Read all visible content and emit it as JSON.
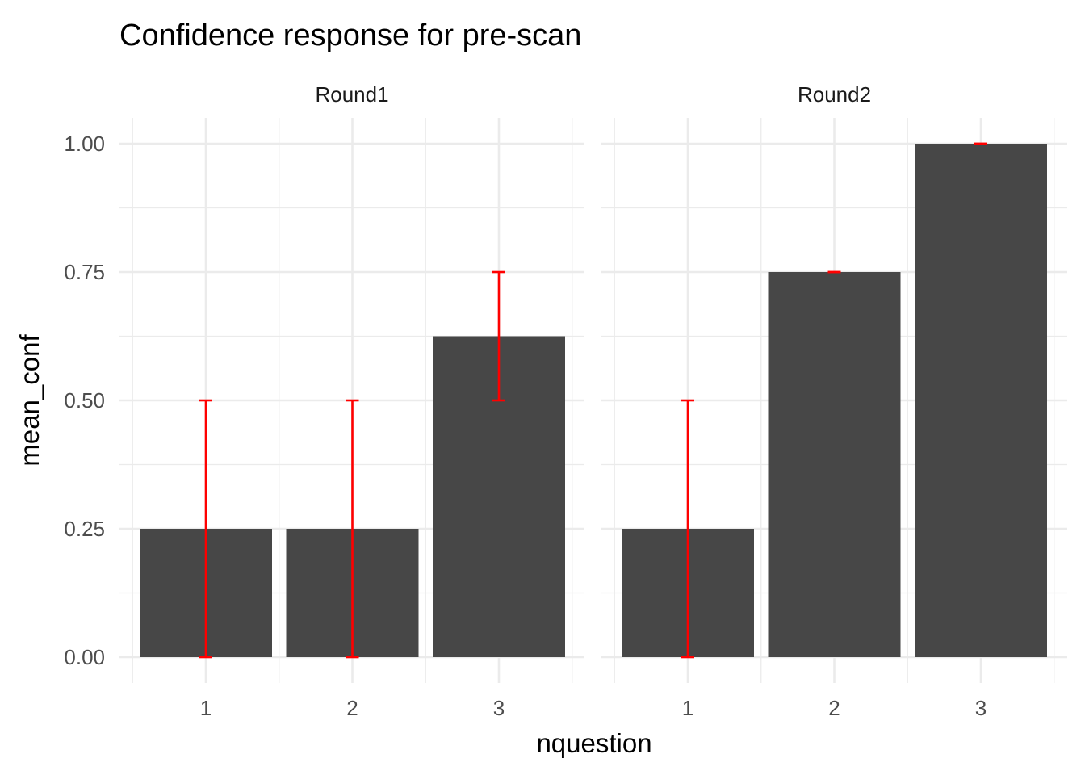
{
  "chart_data": {
    "type": "bar",
    "title": "Confidence response for pre-scan",
    "xlabel": "nquestion",
    "ylabel": "mean_conf",
    "ylim": [
      0,
      1
    ],
    "y_ticks": [
      "0.00",
      "0.25",
      "0.50",
      "0.75",
      "1.00"
    ],
    "grid": true,
    "legend": "none",
    "colors": {
      "bar": "#474747",
      "errorbar": "#ff0000"
    },
    "facets": [
      {
        "label": "Round1",
        "categories": [
          "1",
          "2",
          "3"
        ],
        "values": [
          0.25,
          0.25,
          0.625
        ],
        "error_low": [
          0.0,
          0.0,
          0.5
        ],
        "error_high": [
          0.5,
          0.5,
          0.75
        ]
      },
      {
        "label": "Round2",
        "categories": [
          "1",
          "2",
          "3"
        ],
        "values": [
          0.25,
          0.75,
          1.0
        ],
        "error_low": [
          0.0,
          0.75,
          1.0
        ],
        "error_high": [
          0.5,
          0.75,
          1.0
        ]
      }
    ]
  }
}
